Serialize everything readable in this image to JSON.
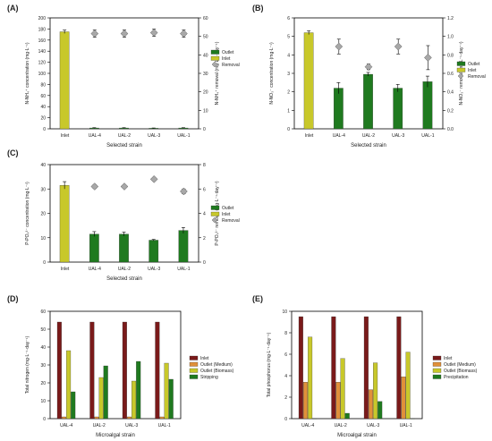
{
  "chart_data": [
    {
      "panel_label": "(A)",
      "type": "bar",
      "categories": [
        "Inlet",
        "UAL-4",
        "UAL-2",
        "UAL-3",
        "UAL-1"
      ],
      "xlabel": "Selected strain",
      "ylabel": "N-NH₄⁺ concentration (mg·L⁻¹)",
      "y2label": "N-NH₄⁺ removal (mg·L⁻¹·day⁻¹)",
      "ylim": [
        0,
        200
      ],
      "yticks": [
        0,
        20,
        40,
        60,
        80,
        100,
        120,
        140,
        160,
        180,
        200
      ],
      "y2lim": [
        0,
        60
      ],
      "y2ticks": [
        0,
        10,
        20,
        30,
        40,
        50,
        60
      ],
      "series": [
        {
          "name": "Outlet",
          "kind": "bar",
          "color": "#1f7a1f",
          "values": [
            null,
            1.5,
            1.5,
            1.0,
            1.5
          ],
          "errors": [
            null,
            0.5,
            0.5,
            0.5,
            0.5
          ]
        },
        {
          "name": "Inlet",
          "kind": "bar",
          "color": "#c8c82a",
          "values": [
            175,
            null,
            null,
            null,
            null
          ],
          "errors": [
            3,
            null,
            null,
            null,
            null
          ]
        },
        {
          "name": "Removal",
          "kind": "diamond",
          "axis": "right",
          "color": "#a8a8a8",
          "values": [
            null,
            51.5,
            51.5,
            52,
            51.5
          ],
          "errors": [
            null,
            2,
            2,
            2,
            2
          ]
        }
      ],
      "legend": "right"
    },
    {
      "panel_label": "(B)",
      "type": "bar",
      "categories": [
        "Inlet",
        "UAL-4",
        "UAL-2",
        "UAL-3",
        "UAL-1"
      ],
      "xlabel": "Selected strain",
      "ylabel": "N-NO₃⁻ concentration (mg·L⁻¹)",
      "y2label": "N-NO₃⁻ removal (mg·L⁻¹·day⁻¹)",
      "ylim": [
        0,
        6
      ],
      "yticks": [
        0,
        1,
        2,
        3,
        4,
        5,
        6
      ],
      "y2lim": [
        0,
        1.2
      ],
      "y2ticks": [
        0.0,
        0.2,
        0.4,
        0.6,
        0.8,
        1.0,
        1.2
      ],
      "series": [
        {
          "name": "Outlet",
          "kind": "bar",
          "color": "#1f7a1f",
          "values": [
            null,
            2.2,
            2.95,
            2.2,
            2.55
          ],
          "errors": [
            null,
            0.3,
            0.1,
            0.2,
            0.3
          ]
        },
        {
          "name": "Inlet",
          "kind": "bar",
          "color": "#c8c82a",
          "values": [
            5.2,
            null,
            null,
            null,
            null
          ],
          "errors": [
            0.1,
            null,
            null,
            null,
            null
          ]
        },
        {
          "name": "Removal",
          "kind": "diamond",
          "axis": "right",
          "color": "#a8a8a8",
          "values": [
            null,
            0.89,
            0.67,
            0.89,
            0.77
          ],
          "errors": [
            null,
            0.08,
            0.03,
            0.08,
            0.13
          ]
        }
      ],
      "legend": "right"
    },
    {
      "panel_label": "(C)",
      "type": "bar",
      "categories": [
        "Inlet",
        "UAL-4",
        "UAL-2",
        "UAL-3",
        "UAL-1"
      ],
      "xlabel": "Selected strain",
      "ylabel": "P-PO₄³⁻ concentration (mg·L⁻¹)",
      "y2label": "P-PO₄³⁻ removal (mg·L⁻¹·day⁻¹)",
      "ylim": [
        0,
        40
      ],
      "yticks": [
        0,
        10,
        20,
        30,
        40
      ],
      "y2lim": [
        0,
        8
      ],
      "y2ticks": [
        0,
        2,
        4,
        6,
        8
      ],
      "series": [
        {
          "name": "Outlet",
          "kind": "bar",
          "color": "#1f7a1f",
          "values": [
            null,
            11.5,
            11.5,
            9.0,
            13.0
          ],
          "errors": [
            null,
            1.0,
            0.8,
            0.3,
            1.2
          ]
        },
        {
          "name": "Inlet",
          "kind": "bar",
          "color": "#c8c82a",
          "values": [
            31.5,
            null,
            null,
            null,
            null
          ],
          "errors": [
            1.5,
            null,
            null,
            null,
            null
          ]
        },
        {
          "name": "Removal",
          "kind": "diamond",
          "axis": "right",
          "color": "#a8a8a8",
          "values": [
            null,
            6.2,
            6.2,
            6.8,
            5.8
          ],
          "errors": [
            null,
            0.15,
            0.15,
            0.12,
            0.2
          ]
        }
      ],
      "legend": "right"
    },
    {
      "panel_label": "(D)",
      "type": "bar",
      "categories": [
        "UAL-4",
        "UAL-2",
        "UAL-3",
        "UAL-1"
      ],
      "xlabel": "Microalgal strain",
      "ylabel": "Total nitrogen (mg·L⁻¹·day⁻¹)",
      "ylim": [
        0,
        60
      ],
      "yticks": [
        0,
        10,
        20,
        30,
        40,
        50,
        60
      ],
      "series": [
        {
          "name": "Inlet",
          "color": "#7a1a1a",
          "values": [
            54,
            54,
            54,
            54
          ]
        },
        {
          "name": "Outlet (Medium)",
          "color": "#e0903a",
          "values": [
            1,
            1,
            1,
            1
          ]
        },
        {
          "name": "Outlet (Biomass)",
          "color": "#c8c82a",
          "values": [
            38,
            23,
            21,
            31
          ]
        },
        {
          "name": "Stripping",
          "color": "#1f7a1f",
          "values": [
            15,
            29.5,
            32,
            22
          ]
        }
      ],
      "legend": "right"
    },
    {
      "panel_label": "(E)",
      "type": "bar",
      "categories": [
        "UAL-4",
        "UAL-2",
        "UAL-3",
        "UAL-1"
      ],
      "xlabel": "Microalgal strain",
      "ylabel": "Total phosphorus (mg·L⁻¹·day⁻¹)",
      "ylim": [
        0,
        10
      ],
      "yticks": [
        0,
        2,
        4,
        6,
        8,
        10
      ],
      "series": [
        {
          "name": "Inlet",
          "color": "#7a1a1a",
          "values": [
            9.5,
            9.5,
            9.5,
            9.5
          ]
        },
        {
          "name": "Outlet (Medium)",
          "color": "#e0903a",
          "values": [
            3.4,
            3.4,
            2.7,
            3.9
          ]
        },
        {
          "name": "Outlet (Biomass)",
          "color": "#c8c82a",
          "values": [
            7.6,
            5.6,
            5.2,
            6.2
          ]
        },
        {
          "name": "Precipitation",
          "color": "#1f7a1f",
          "values": [
            0,
            0.5,
            1.6,
            0
          ]
        }
      ],
      "legend": "right"
    }
  ]
}
